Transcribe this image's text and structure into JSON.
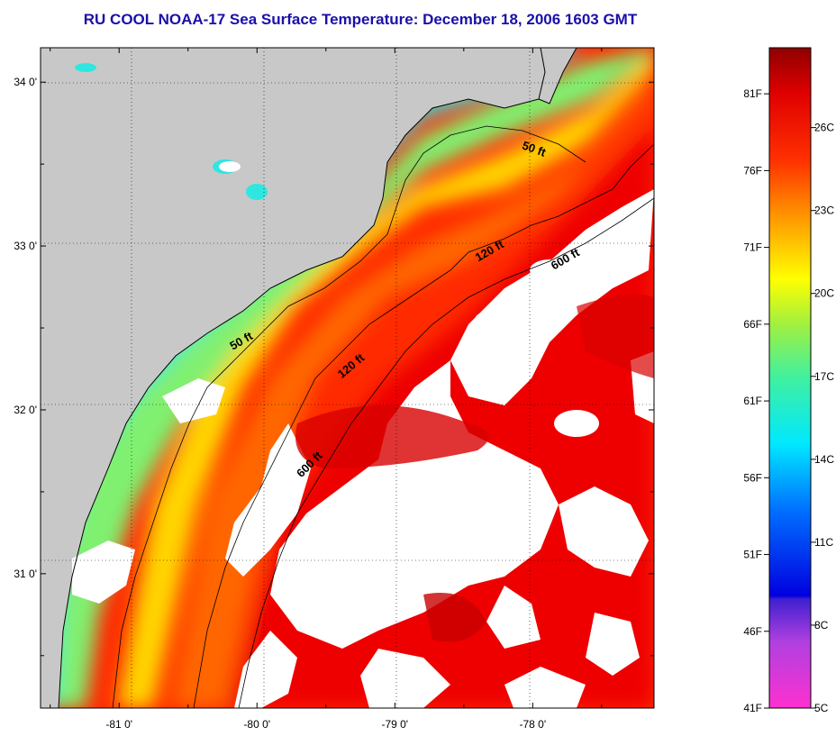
{
  "title": "RU COOL  NOAA-17  Sea Surface Temperature:  December 18, 2006 1603 GMT",
  "map": {
    "lon_ticks": [
      {
        "value": -81,
        "label": "-81 0'"
      },
      {
        "value": -80,
        "label": "-80 0'"
      },
      {
        "value": -79,
        "label": "-79 0'"
      },
      {
        "value": -78,
        "label": "-78 0'"
      }
    ],
    "lat_ticks": [
      {
        "value": 34,
        "label": "34 0'"
      },
      {
        "value": 33,
        "label": "33 0'"
      },
      {
        "value": 32,
        "label": "32 0'"
      },
      {
        "value": 31,
        "label": "31 0'"
      }
    ],
    "lon_range": [
      -81.57,
      -77.12
    ],
    "lat_range": [
      30.18,
      34.21
    ],
    "isobath_labels": [
      {
        "text": "50 ft",
        "lon": -78.0,
        "lat": 33.57,
        "angle": 20
      },
      {
        "text": "120 ft",
        "lon": -78.3,
        "lat": 32.95,
        "angle": -30
      },
      {
        "text": "600 ft",
        "lon": -77.75,
        "lat": 32.9,
        "angle": -30
      },
      {
        "text": "50 ft",
        "lon": -80.1,
        "lat": 32.4,
        "angle": -30
      },
      {
        "text": "120 ft",
        "lon": -79.3,
        "lat": 32.25,
        "angle": -40
      },
      {
        "text": "600 ft",
        "lon": -79.6,
        "lat": 31.65,
        "angle": -45
      }
    ],
    "colors": {
      "land": "#c8c8c8",
      "cloud": "#ffffff",
      "cold": "#2fe6e0",
      "cool": "#7cf07c",
      "mid": "#ffe000",
      "warm": "#ff7a00",
      "hot": "#ff1a00",
      "gulfstream": "#e00000"
    }
  },
  "colorbar": {
    "f_labels": [
      "81F",
      "76F",
      "71F",
      "66F",
      "61F",
      "56F",
      "51F",
      "46F",
      "41F"
    ],
    "c_labels": [
      "26C",
      "23C",
      "20C",
      "17C",
      "14C",
      "11C",
      "8C",
      "5C"
    ],
    "c_values": [
      26,
      23,
      20,
      17,
      14,
      11,
      8,
      5
    ],
    "range_f": [
      41,
      84
    ]
  }
}
